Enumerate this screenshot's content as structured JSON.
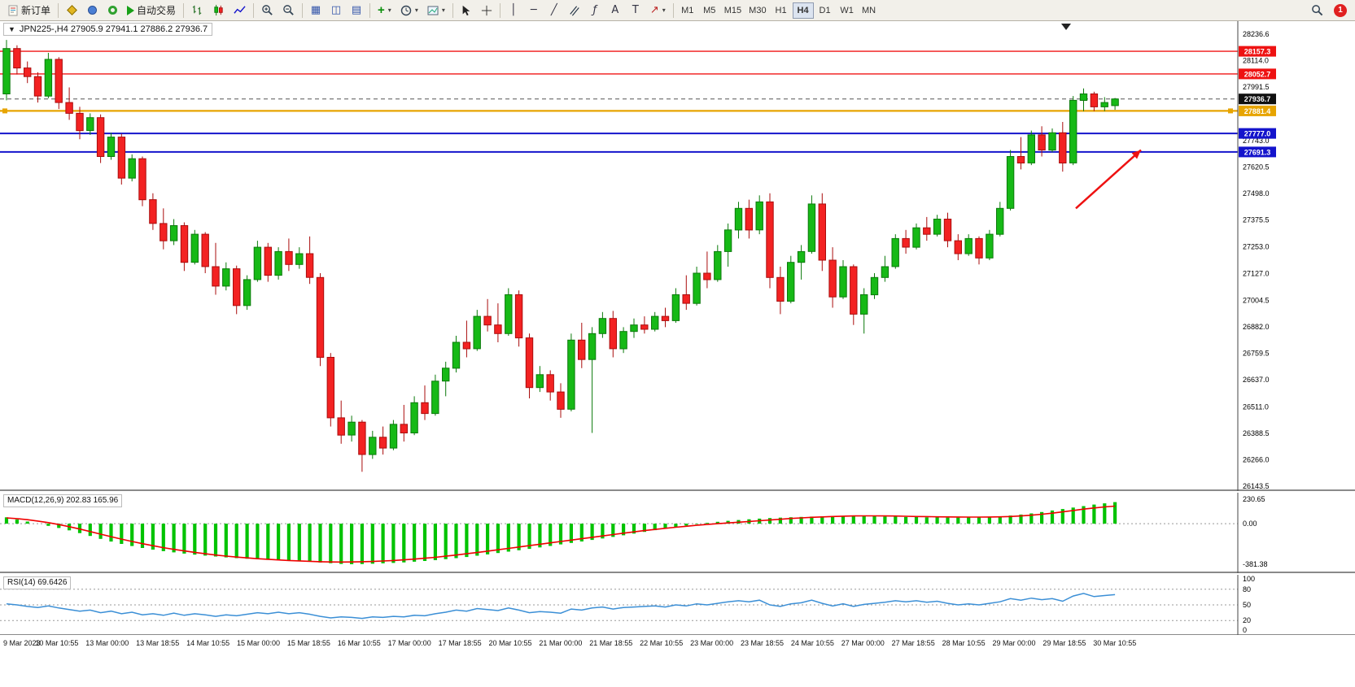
{
  "toolbar": {
    "new_order_label": "新订单",
    "auto_trading_label": "自动交易",
    "timeframes": [
      "M1",
      "M5",
      "M15",
      "M30",
      "H1",
      "H4",
      "D1",
      "W1",
      "MN"
    ],
    "active_timeframe": "H4",
    "notification_count": "1",
    "icons": [
      "new-order-doc",
      "chart-profile",
      "market-watch",
      "navigator",
      "auto-trading-play",
      "bar-chart",
      "candlestick-chart",
      "line-chart",
      "zoom-in",
      "zoom-out",
      "tile-windows",
      "cascade-windows",
      "arrange-windows",
      "add-indicator",
      "periods-clock",
      "templates",
      "cursor",
      "crosshair",
      "vertical-line",
      "horizontal-line",
      "trendline",
      "equidistant-channel",
      "fibonacci",
      "text",
      "text-label",
      "arrow-tools",
      "search",
      "notification"
    ]
  },
  "chart": {
    "symbol": "JPN225-",
    "period": "H4",
    "title": "JPN225-,H4  27905.9 27941.1 27886.2 27936.7"
  },
  "indicators": {
    "macd": {
      "label": "MACD(12,26,9) 202.83 165.96"
    },
    "rsi": {
      "label": "RSI(14) 69.6426"
    }
  },
  "price_axis": {
    "labels": [
      "28236.6",
      "28114.0",
      "27991.5",
      "27743.0",
      "27620.5",
      "27498.0",
      "27375.5",
      "27253.0",
      "27127.0",
      "27004.5",
      "26882.0",
      "26759.5",
      "26637.0",
      "26511.0",
      "26388.5",
      "26266.0",
      "26143.5"
    ],
    "badges": [
      {
        "value": "28157.3",
        "price": 28157.3,
        "bg": "#ee1212",
        "fg": "#ffffff"
      },
      {
        "value": "28052.7",
        "price": 28052.7,
        "bg": "#ee1212",
        "fg": "#ffffff"
      },
      {
        "value": "27936.7",
        "price": 27936.7,
        "bg": "#101010",
        "fg": "#ffffff"
      },
      {
        "value": "27881.4",
        "price": 27881.4,
        "bg": "#e7a400",
        "fg": "#ffffff"
      },
      {
        "value": "27777.0",
        "price": 27777.0,
        "bg": "#1414cc",
        "fg": "#ffffff"
      },
      {
        "value": "27691.3",
        "price": 27691.3,
        "bg": "#1414cc",
        "fg": "#ffffff"
      }
    ]
  },
  "time_axis": [
    "9 Mar 2023",
    "10 Mar 10:55",
    "13 Mar 00:00",
    "13 Mar 18:55",
    "14 Mar 10:55",
    "15 Mar 00:00",
    "15 Mar 18:55",
    "16 Mar 10:55",
    "17 Mar 00:00",
    "17 Mar 18:55",
    "20 Mar 10:55",
    "21 Mar 00:00",
    "21 Mar 18:55",
    "22 Mar 10:55",
    "23 Mar 00:00",
    "23 Mar 18:55",
    "24 Mar 10:55",
    "27 Mar 00:00",
    "27 Mar 18:55",
    "28 Mar 10:55",
    "29 Mar 00:00",
    "29 Mar 18:55",
    "30 Mar 10:55"
  ],
  "colors": {
    "bull": "#16b916",
    "bull_border": "#0b7a0b",
    "bear": "#f32222",
    "bear_border": "#aa0d0d",
    "macd_hist": "#00c300",
    "macd_signal": "#f00000",
    "rsi_line": "#3b8fd6",
    "line_red": "#f01515",
    "line_gold": "#e7a400",
    "line_blue": "#1414cc"
  },
  "chart_data": [
    {
      "type": "candlestick",
      "symbol": "JPN225-",
      "timeframe": "H4",
      "ohlc": {
        "open": 27905.9,
        "high": 27941.1,
        "low": 27886.2,
        "close": 27936.7
      },
      "ylim": [
        26143.5,
        28236.6
      ],
      "current_price": 27936.7,
      "shift_marker_x": 1310,
      "lines": [
        {
          "price": 28157.3,
          "color": "#f01515",
          "width": 1.4,
          "name": "resistance-line-1",
          "markers": false
        },
        {
          "price": 28052.7,
          "color": "#f01515",
          "width": 1.4,
          "name": "resistance-line-2",
          "markers": false
        },
        {
          "price": 27881.4,
          "color": "#e7a400",
          "width": 2.2,
          "name": "gold-pivot-line",
          "markers": true
        },
        {
          "price": 27777.0,
          "color": "#1414cc",
          "width": 2.0,
          "name": "support-line-1",
          "markers": false
        },
        {
          "price": 27691.3,
          "color": "#1414cc",
          "width": 2.0,
          "name": "support-line-2",
          "markers": false
        }
      ],
      "annotations": [
        {
          "type": "arrow",
          "color": "#ee1111",
          "from": {
            "x": 1322,
            "price": 27430
          },
          "to": {
            "x": 1402,
            "price": 27700
          }
        }
      ],
      "candles": [
        [
          27960,
          28210,
          27930,
          28170
        ],
        [
          28170,
          28185,
          28050,
          28080
        ],
        [
          28080,
          28110,
          28010,
          28040
        ],
        [
          28040,
          28060,
          27920,
          27950
        ],
        [
          27950,
          28150,
          27940,
          28120
        ],
        [
          28120,
          28130,
          27890,
          27920
        ],
        [
          27920,
          27990,
          27840,
          27870
        ],
        [
          27870,
          27900,
          27750,
          27790
        ],
        [
          27790,
          27870,
          27770,
          27850
        ],
        [
          27850,
          27865,
          27640,
          27670
        ],
        [
          27670,
          27780,
          27655,
          27760
        ],
        [
          27760,
          27775,
          27540,
          27570
        ],
        [
          27570,
          27680,
          27555,
          27660
        ],
        [
          27660,
          27670,
          27440,
          27470
        ],
        [
          27470,
          27500,
          27330,
          27360
        ],
        [
          27360,
          27430,
          27240,
          27280
        ],
        [
          27280,
          27380,
          27260,
          27350
        ],
        [
          27350,
          27365,
          27140,
          27180
        ],
        [
          27180,
          27330,
          27170,
          27310
        ],
        [
          27310,
          27320,
          27130,
          27160
        ],
        [
          27160,
          27270,
          27030,
          27070
        ],
        [
          27070,
          27180,
          27050,
          27150
        ],
        [
          27150,
          27165,
          26940,
          26980
        ],
        [
          26980,
          27120,
          26960,
          27100
        ],
        [
          27100,
          27280,
          27090,
          27250
        ],
        [
          27250,
          27270,
          27090,
          27120
        ],
        [
          27120,
          27250,
          27100,
          27230
        ],
        [
          27230,
          27290,
          27140,
          27170
        ],
        [
          27170,
          27250,
          27150,
          27220
        ],
        [
          27220,
          27300,
          27080,
          27110
        ],
        [
          27110,
          27130,
          26700,
          26740
        ],
        [
          26740,
          26760,
          26420,
          26460
        ],
        [
          26460,
          26540,
          26340,
          26380
        ],
        [
          26380,
          26470,
          26350,
          26440
        ],
        [
          26440,
          26450,
          26210,
          26290
        ],
        [
          26290,
          26400,
          26270,
          26370
        ],
        [
          26370,
          26420,
          26290,
          26320
        ],
        [
          26320,
          26450,
          26310,
          26430
        ],
        [
          26430,
          26520,
          26350,
          26390
        ],
        [
          26390,
          26560,
          26380,
          26530
        ],
        [
          26530,
          26610,
          26450,
          26480
        ],
        [
          26480,
          26660,
          26470,
          26630
        ],
        [
          26630,
          26720,
          26560,
          26690
        ],
        [
          26690,
          26840,
          26670,
          26810
        ],
        [
          26810,
          26910,
          26740,
          26780
        ],
        [
          26780,
          26960,
          26770,
          26930
        ],
        [
          26930,
          27010,
          26860,
          26890
        ],
        [
          26890,
          26990,
          26810,
          26850
        ],
        [
          26850,
          27060,
          26840,
          27030
        ],
        [
          27030,
          27050,
          26790,
          26830
        ],
        [
          26830,
          26850,
          26550,
          26600
        ],
        [
          26600,
          26700,
          26580,
          26660
        ],
        [
          26660,
          26680,
          26540,
          26580
        ],
        [
          26580,
          26620,
          26460,
          26500
        ],
        [
          26500,
          26850,
          26490,
          26820
        ],
        [
          26820,
          26900,
          26690,
          26730
        ],
        [
          26730,
          26880,
          26390,
          26850
        ],
        [
          26850,
          26950,
          26830,
          26920
        ],
        [
          26920,
          26955,
          26740,
          26780
        ],
        [
          26780,
          26880,
          26760,
          26860
        ],
        [
          26860,
          26920,
          26830,
          26890
        ],
        [
          26890,
          26930,
          26850,
          26870
        ],
        [
          26870,
          26950,
          26860,
          26930
        ],
        [
          26930,
          26970,
          26880,
          26910
        ],
        [
          26910,
          27060,
          26900,
          27030
        ],
        [
          27030,
          27120,
          26960,
          26990
        ],
        [
          26990,
          27160,
          26980,
          27130
        ],
        [
          27130,
          27230,
          27060,
          27100
        ],
        [
          27100,
          27260,
          27090,
          27230
        ],
        [
          27230,
          27360,
          27160,
          27330
        ],
        [
          27330,
          27460,
          27290,
          27430
        ],
        [
          27430,
          27470,
          27290,
          27330
        ],
        [
          27330,
          27490,
          27310,
          27460
        ],
        [
          27460,
          27500,
          27060,
          27110
        ],
        [
          27110,
          27160,
          26940,
          27000
        ],
        [
          27000,
          27210,
          26990,
          27180
        ],
        [
          27180,
          27260,
          27100,
          27230
        ],
        [
          27230,
          27490,
          27220,
          27450
        ],
        [
          27450,
          27500,
          27140,
          27190
        ],
        [
          27190,
          27250,
          26970,
          27020
        ],
        [
          27020,
          27190,
          27010,
          27160
        ],
        [
          27160,
          27170,
          26890,
          26940
        ],
        [
          26940,
          27060,
          26850,
          27030
        ],
        [
          27030,
          27130,
          27010,
          27110
        ],
        [
          27110,
          27210,
          27090,
          27160
        ],
        [
          27160,
          27310,
          27150,
          27290
        ],
        [
          27290,
          27330,
          27220,
          27250
        ],
        [
          27250,
          27360,
          27240,
          27340
        ],
        [
          27340,
          27390,
          27280,
          27310
        ],
        [
          27310,
          27400,
          27300,
          27380
        ],
        [
          27380,
          27410,
          27250,
          27280
        ],
        [
          27280,
          27310,
          27190,
          27220
        ],
        [
          27220,
          27310,
          27210,
          27290
        ],
        [
          27290,
          27300,
          27170,
          27200
        ],
        [
          27200,
          27330,
          27190,
          27310
        ],
        [
          27310,
          27460,
          27300,
          27430
        ],
        [
          27430,
          27700,
          27420,
          27670
        ],
        [
          27670,
          27760,
          27610,
          27640
        ],
        [
          27640,
          27790,
          27630,
          27770
        ],
        [
          27770,
          27810,
          27670,
          27700
        ],
        [
          27700,
          27800,
          27690,
          27780
        ],
        [
          27780,
          27830,
          27600,
          27640
        ],
        [
          27640,
          27950,
          27630,
          27930
        ],
        [
          27930,
          27985,
          27880,
          27960
        ],
        [
          27960,
          27970,
          27880,
          27900
        ],
        [
          27900,
          27945,
          27880,
          27920
        ],
        [
          27905.9,
          27941.1,
          27886.2,
          27936.7
        ]
      ]
    },
    {
      "type": "bar",
      "name": "MACD",
      "params": [
        12,
        26,
        9
      ],
      "value": 202.83,
      "signal_value": 165.96,
      "ylim": [
        -381.38,
        230.65
      ],
      "scale_labels": [
        "230.65",
        "0.00",
        "-381.38"
      ],
      "histogram": [
        60,
        40,
        20,
        0,
        -20,
        -40,
        -62,
        -88,
        -115,
        -143,
        -168,
        -190,
        -210,
        -228,
        -244,
        -258,
        -270,
        -281,
        -291,
        -300,
        -309,
        -317,
        -324,
        -330,
        -335,
        -340,
        -344,
        -348,
        -352,
        -358,
        -365,
        -372,
        -378,
        -381.38,
        -380,
        -377,
        -373,
        -369,
        -364,
        -358,
        -351,
        -343,
        -334,
        -324,
        -313,
        -301,
        -289,
        -276,
        -263,
        -250,
        -237,
        -223,
        -209,
        -195,
        -181,
        -167,
        -153,
        -139,
        -124,
        -109,
        -93,
        -77,
        -61,
        -46,
        -31,
        -17,
        -4,
        8,
        18,
        27,
        35,
        42,
        48,
        53,
        57,
        61,
        64,
        67,
        69,
        71,
        72,
        72,
        71,
        70,
        68,
        66,
        64,
        62,
        60,
        59,
        58,
        58,
        59,
        61,
        65,
        70,
        77,
        86,
        97,
        110,
        124,
        138,
        152,
        166,
        180,
        192,
        202.83
      ],
      "signal": [
        55,
        48,
        38,
        25,
        10,
        -8,
        -28,
        -50,
        -74,
        -98,
        -122,
        -145,
        -167,
        -188,
        -207,
        -225,
        -241,
        -256,
        -270,
        -283,
        -295,
        -305,
        -314,
        -322,
        -329,
        -335,
        -341,
        -346,
        -350,
        -354,
        -358,
        -360,
        -361,
        -360,
        -358,
        -355,
        -351,
        -346,
        -340,
        -333,
        -325,
        -316,
        -306,
        -295,
        -283,
        -271,
        -258,
        -245,
        -232,
        -219,
        -206,
        -193,
        -180,
        -167,
        -154,
        -141,
        -128,
        -115,
        -102,
        -89,
        -77,
        -65,
        -54,
        -43,
        -33,
        -24,
        -15,
        -7,
        0,
        7,
        14,
        21,
        28,
        35,
        42,
        49,
        55,
        60,
        64,
        68,
        71,
        73,
        74,
        74,
        73,
        72,
        70,
        68,
        67,
        65,
        64,
        63,
        62,
        62,
        63,
        65,
        68,
        73,
        80,
        89,
        99,
        111,
        124,
        137,
        148,
        158,
        165.96
      ]
    },
    {
      "type": "line",
      "name": "RSI",
      "params": [
        14
      ],
      "value": 69.6426,
      "ylim": [
        0,
        100
      ],
      "levels": [
        20,
        50,
        80
      ],
      "scale_labels": [
        "100",
        "80",
        "50",
        "20",
        "0"
      ],
      "values": [
        52,
        50,
        47,
        45,
        48,
        44,
        41,
        38,
        40,
        35,
        38,
        33,
        36,
        31,
        33,
        30,
        34,
        30,
        33,
        31,
        28,
        31,
        29,
        32,
        35,
        33,
        36,
        33,
        35,
        32,
        28,
        25,
        27,
        26,
        24,
        27,
        26,
        28,
        27,
        30,
        29,
        33,
        36,
        40,
        38,
        43,
        41,
        39,
        44,
        40,
        35,
        37,
        36,
        34,
        42,
        40,
        44,
        46,
        42,
        45,
        46,
        47,
        48,
        46,
        50,
        48,
        52,
        50,
        53,
        56,
        58,
        56,
        59,
        50,
        47,
        52,
        54,
        59,
        53,
        48,
        52,
        47,
        51,
        53,
        55,
        58,
        56,
        58,
        55,
        57,
        53,
        50,
        52,
        50,
        53,
        56,
        62,
        59,
        63,
        60,
        62,
        57,
        67,
        72,
        66,
        68,
        69.6426
      ]
    }
  ]
}
